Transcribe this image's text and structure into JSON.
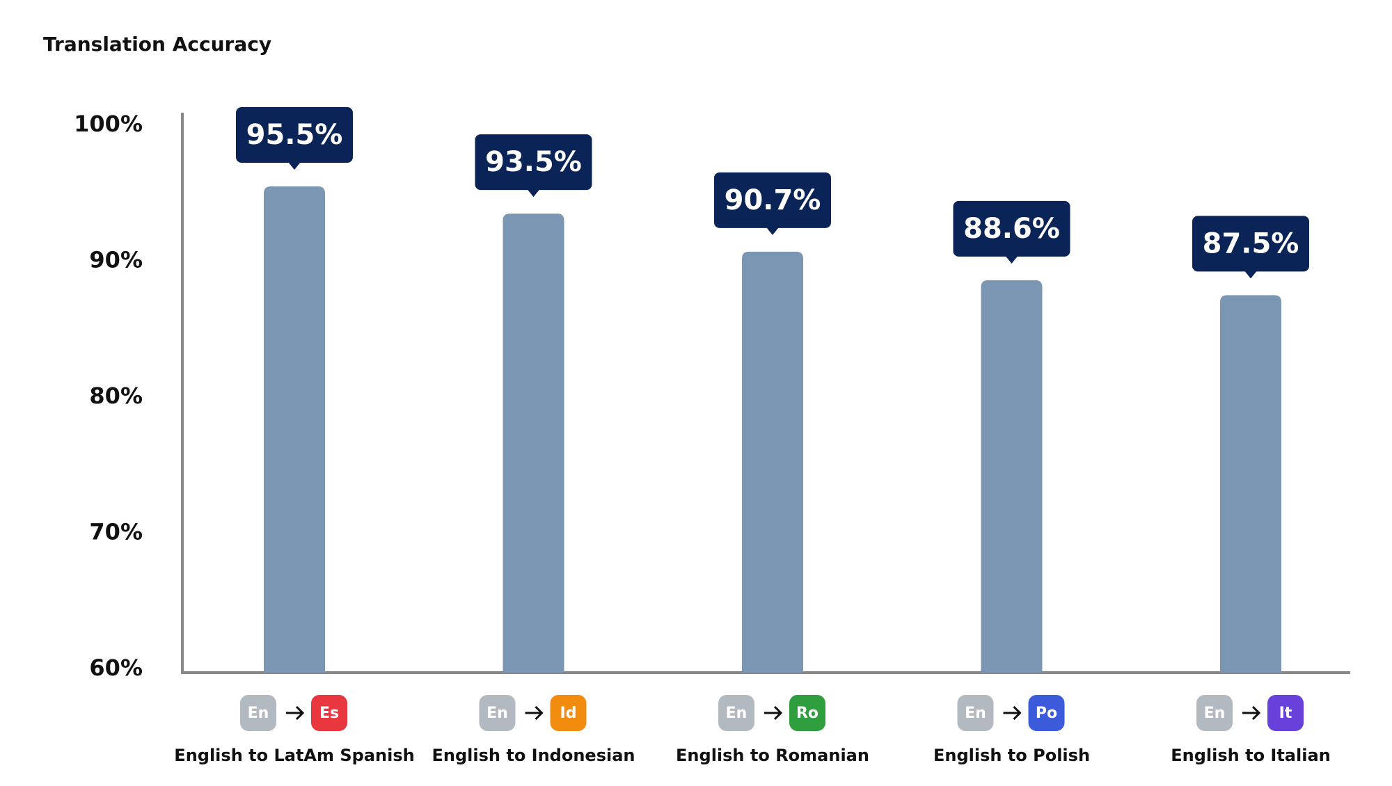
{
  "chart_data": {
    "type": "bar",
    "title": "Translation Accuracy",
    "categories": [
      "English to LatAm Spanish",
      "English to Indonesian",
      "English to Romanian",
      "English to Polish",
      "English to Italian"
    ],
    "values": [
      95.5,
      93.5,
      90.7,
      88.6,
      87.5
    ],
    "value_labels": [
      "95.5%",
      "93.5%",
      "90.7%",
      "88.6%",
      "87.5%"
    ],
    "color": "#7b96b2",
    "label_color": "#0b2457",
    "badges": [
      {
        "from": "En",
        "to": "Es",
        "color": "#e8373f"
      },
      {
        "from": "En",
        "to": "Id",
        "color": "#f28c0f"
      },
      {
        "from": "En",
        "to": "Ro",
        "color": "#2e9e3e"
      },
      {
        "from": "En",
        "to": "Po",
        "color": "#3b5bdb"
      },
      {
        "from": "En",
        "to": "It",
        "color": "#6741d9"
      }
    ],
    "ylim": [
      60,
      100
    ],
    "yticks": [
      {
        "value": 60,
        "label": "60%"
      },
      {
        "value": 70,
        "label": "70%"
      },
      {
        "value": 80,
        "label": "80%"
      },
      {
        "value": 90,
        "label": "90%"
      },
      {
        "value": 100,
        "label": "100%"
      }
    ],
    "grid": false
  }
}
